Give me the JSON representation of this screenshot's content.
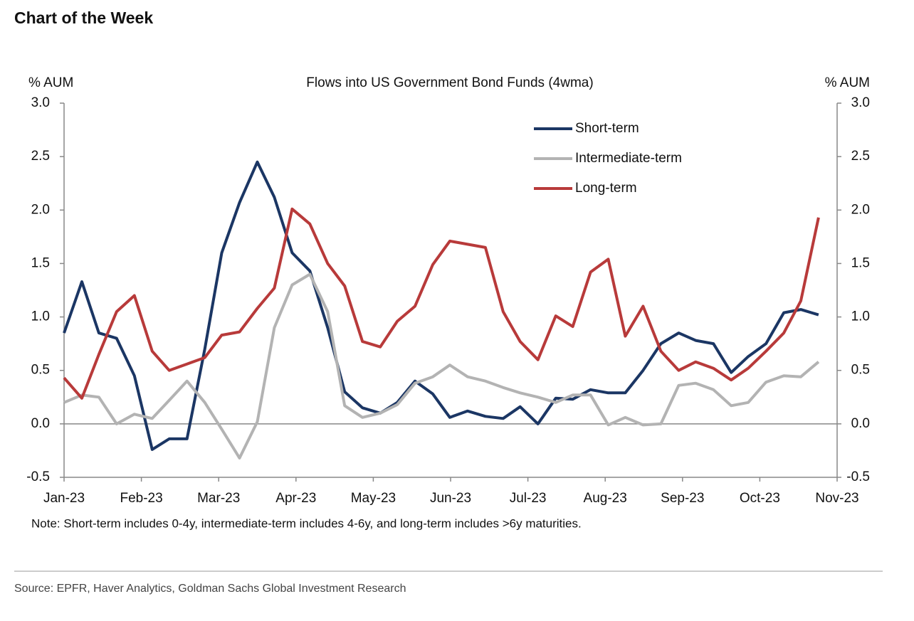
{
  "header": {
    "title": "Chart of the Week"
  },
  "chart_data": {
    "type": "line",
    "title": "Flows into US Government Bond Funds (4wma)",
    "y_label": "% AUM",
    "y2_label": "% AUM",
    "x": [
      0,
      0.23,
      0.45,
      0.68,
      0.91,
      1.14,
      1.36,
      1.59,
      1.82,
      2.04,
      2.27,
      2.5,
      2.72,
      2.95,
      3.18,
      3.41,
      3.63,
      3.86,
      4.09,
      4.31,
      4.54,
      4.77,
      4.99,
      5.22,
      5.45,
      5.68,
      5.9,
      6.13,
      6.36,
      6.58,
      6.81,
      7.04,
      7.26,
      7.49,
      7.72,
      7.95,
      8.17,
      8.4,
      8.63,
      8.85,
      9.08,
      9.31,
      9.53,
      9.76
    ],
    "series": [
      {
        "name": "Short-term",
        "color": "#1b3664",
        "values": [
          0.85,
          1.33,
          0.85,
          0.8,
          0.45,
          -0.24,
          -0.14,
          -0.14,
          0.7,
          1.6,
          2.07,
          2.45,
          2.12,
          1.6,
          1.43,
          0.9,
          0.3,
          0.15,
          0.1,
          0.2,
          0.4,
          0.28,
          0.06,
          0.12,
          0.07,
          0.05,
          0.16,
          0.0,
          0.24,
          0.23,
          0.32,
          0.29,
          0.29,
          0.5,
          0.75,
          0.85,
          0.78,
          0.75,
          0.48,
          0.63,
          0.75,
          1.04,
          1.07,
          1.02
        ]
      },
      {
        "name": "Intermediate-term",
        "color": "#b3b3b3",
        "values": [
          0.2,
          0.27,
          0.25,
          0.0,
          0.09,
          0.05,
          0.22,
          0.4,
          0.2,
          -0.05,
          -0.32,
          0.02,
          0.9,
          1.3,
          1.4,
          1.05,
          0.17,
          0.06,
          0.1,
          0.18,
          0.38,
          0.44,
          0.55,
          0.44,
          0.4,
          0.34,
          0.29,
          0.25,
          0.2,
          0.27,
          0.27,
          -0.01,
          0.06,
          -0.01,
          0.0,
          0.36,
          0.38,
          0.32,
          0.17,
          0.2,
          0.39,
          0.45,
          0.44,
          0.58
        ]
      },
      {
        "name": "Long-term",
        "color": "#b83a3a",
        "values": [
          0.43,
          0.24,
          0.65,
          1.05,
          1.2,
          0.68,
          0.5,
          0.56,
          0.62,
          0.83,
          0.86,
          1.08,
          1.27,
          2.01,
          1.87,
          1.5,
          1.29,
          0.77,
          0.72,
          0.96,
          1.1,
          1.49,
          1.71,
          1.68,
          1.65,
          1.05,
          0.77,
          0.6,
          1.01,
          0.91,
          1.42,
          1.54,
          0.82,
          1.1,
          0.68,
          0.5,
          0.58,
          0.52,
          0.41,
          0.52,
          0.68,
          0.85,
          1.15,
          1.93
        ]
      }
    ],
    "xlim": [
      0,
      10
    ],
    "xticks": [
      {
        "value": 0,
        "label": "Jan-23"
      },
      {
        "value": 1,
        "label": "Feb-23"
      },
      {
        "value": 2,
        "label": "Mar-23"
      },
      {
        "value": 3,
        "label": "Apr-23"
      },
      {
        "value": 4,
        "label": "May-23"
      },
      {
        "value": 5,
        "label": "Jun-23"
      },
      {
        "value": 6,
        "label": "Jul-23"
      },
      {
        "value": 7,
        "label": "Aug-23"
      },
      {
        "value": 8,
        "label": "Sep-23"
      },
      {
        "value": 9,
        "label": "Oct-23"
      },
      {
        "value": 10,
        "label": "Nov-23"
      }
    ],
    "ylim": [
      -0.5,
      3
    ],
    "yticks": [
      -0.5,
      {
        "value": 0,
        "label": "0.0"
      },
      0.5,
      {
        "value": 1,
        "label": "1.0"
      },
      1.5,
      {
        "value": 2,
        "label": "2.0"
      },
      2.5,
      {
        "value": 3,
        "label": "3.0"
      }
    ],
    "y2lim": [
      -0.5,
      3
    ],
    "y2ticks": [
      -0.5,
      {
        "value": 0,
        "label": "0.0"
      },
      0.5,
      {
        "value": 1,
        "label": "1.0"
      },
      1.5,
      {
        "value": 2,
        "label": "2.0"
      },
      2.5,
      {
        "value": 3,
        "label": "3.0"
      }
    ],
    "legend": "upper right",
    "note": "Note: Short-term includes 0-4y, intermediate-term includes 4-6y, and long-term includes >6y maturities."
  },
  "footer": {
    "source": "Source: EPFR, Haver Analytics, Goldman Sachs Global Investment Research"
  }
}
